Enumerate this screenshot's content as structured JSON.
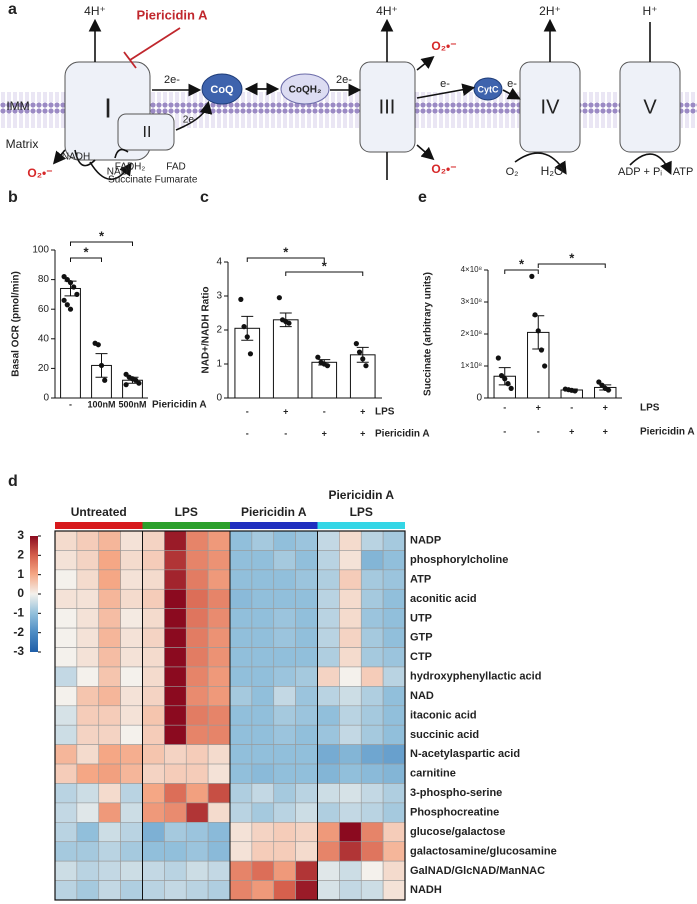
{
  "diagram": {
    "panel": "a",
    "labels": [
      "4H⁺",
      "Piericidin A",
      "IMM",
      "Matrix",
      "I",
      "2e-",
      "CoQ",
      "CoQH₂",
      "2e-",
      "II",
      "2e-",
      "NADH",
      "NAD⁺",
      "O₂•⁻",
      "FADH₂",
      "Succinate",
      "FAD",
      "Fumarate",
      "III",
      "4H⁺",
      "O₂•⁻",
      "O₂•⁻",
      "e-",
      "CytC",
      "e-",
      "IV",
      "2H⁺",
      "O₂",
      "H₂O",
      "V",
      "H⁺",
      "ADP + Pᵢ",
      "ATP"
    ]
  },
  "chart_data": [
    {
      "type": "bar",
      "panel": "b",
      "ylabel": "Basal OCR (pmol/min)",
      "values": [
        74,
        22,
        12
      ],
      "errors": [
        5,
        8,
        2
      ],
      "points": [
        [
          82,
          80,
          78,
          75,
          70,
          66,
          63,
          60
        ],
        [
          37,
          36,
          22,
          12
        ],
        [
          16,
          14,
          13,
          12,
          10,
          9
        ]
      ],
      "ylim": [
        0,
        100
      ],
      "yticks": [
        0,
        20,
        40,
        60,
        80,
        100
      ],
      "color": "#ffffff",
      "treatments": [
        {
          "name": "Piericidin A",
          "levels": [
            "-",
            "100nM",
            "500nM"
          ]
        }
      ],
      "annotations": [
        "*",
        "*"
      ]
    },
    {
      "type": "bar",
      "panel": "c",
      "ylabel": "NAD+/NADH Ratio",
      "values": [
        2.05,
        2.3,
        1.05,
        1.27
      ],
      "errors": [
        0.35,
        0.2,
        0.08,
        0.22
      ],
      "points": [
        [
          2.9,
          2.1,
          1.8,
          1.3
        ],
        [
          2.95,
          2.3,
          2.25,
          2.2
        ],
        [
          1.2,
          1.05,
          1.0,
          0.95
        ],
        [
          1.6,
          1.35,
          1.15,
          0.95
        ]
      ],
      "ylim": [
        0,
        4
      ],
      "yticks": [
        0,
        1,
        2,
        3,
        4
      ],
      "color": "#ffffff",
      "treatments": [
        {
          "name": "LPS",
          "levels": [
            "-",
            "+",
            "-",
            "+"
          ]
        },
        {
          "name": "Piericidin A",
          "levels": [
            "-",
            "-",
            "+",
            "+"
          ]
        }
      ],
      "annotations": [
        "*",
        "*"
      ]
    },
    {
      "type": "bar",
      "panel": "e",
      "ylabel": "Succinate (arbitrary units)",
      "values": [
        68000000,
        205000000,
        25000000,
        33000000
      ],
      "errors": [
        27000000,
        52000000,
        3000000,
        8000000
      ],
      "points": [
        [
          125000000,
          70000000,
          60000000,
          45000000,
          30000000
        ],
        [
          380000000,
          260000000,
          210000000,
          150000000,
          100000000
        ],
        [
          28000000,
          26000000,
          24000000,
          22000000
        ],
        [
          50000000,
          40000000,
          30000000,
          25000000
        ]
      ],
      "ylim": [
        0,
        400000000
      ],
      "yticks": [
        0,
        {
          "value": 100000000,
          "label": "1×10⁸"
        },
        {
          "value": 200000000,
          "label": "2×10⁸"
        },
        {
          "value": 300000000,
          "label": "3×10⁸"
        },
        {
          "value": 400000000,
          "label": "4×10⁸"
        }
      ],
      "color": "#ffffff",
      "treatments": [
        {
          "name": "LPS",
          "levels": [
            "-",
            "+",
            "-",
            "+"
          ]
        },
        {
          "name": "Piericidin A",
          "levels": [
            "-",
            "-",
            "+",
            "+"
          ]
        }
      ],
      "annotations": [
        "*",
        "*"
      ]
    },
    {
      "type": "heatmap",
      "panel": "d",
      "groups": [
        {
          "name": "Untreated",
          "color": "#d7191c"
        },
        {
          "name": "LPS",
          "color": "#2ca02c"
        },
        {
          "name": "Piericidin A",
          "color": "#1f2fbf"
        },
        {
          "name": "Piericidin A LPS",
          "color": "#33d6e6"
        }
      ],
      "rows": [
        "NADP",
        "phosphorylcholine",
        "ATP",
        "aconitic acid",
        "UTP",
        "GTP",
        "CTP",
        "hydroxyphenyllactic acid",
        "NAD",
        "itaconic acid",
        "succinic acid",
        "N-acetylaspartic acid",
        "carnitine",
        "3-phospho-serine",
        "Phosphocreatine",
        "glucose/galactose",
        "galactosamine/glucosamine",
        "GalNAD/GlcNAD/ManNAC",
        "NADH"
      ],
      "values": [
        [
          0.3,
          0.5,
          0.8,
          0.2,
          0.4,
          2.8,
          1.5,
          1.2,
          -1,
          -0.8,
          -1,
          -0.9,
          -0.5,
          0.3,
          -0.6,
          -0.8
        ],
        [
          0.2,
          0.4,
          1,
          0.3,
          0.5,
          2.5,
          1.5,
          1.3,
          -1,
          -1,
          -0.8,
          -1,
          -0.6,
          0.2,
          -1.2,
          -1
        ],
        [
          0,
          0.3,
          1,
          0.2,
          0.3,
          2.7,
          1.6,
          1.2,
          -1,
          -1,
          -1,
          -0.9,
          -0.7,
          0.5,
          -0.8,
          -0.9
        ],
        [
          0.2,
          0.2,
          0.8,
          0.3,
          0.5,
          3,
          1.8,
          1.5,
          -1.1,
          -1,
          -1,
          -1,
          -0.6,
          0.3,
          -0.8,
          -1
        ],
        [
          0,
          0.2,
          0.7,
          0.1,
          0.3,
          3,
          1.7,
          1.4,
          -1,
          -1,
          -0.9,
          -1,
          -0.6,
          0.3,
          -0.9,
          -1
        ],
        [
          0,
          0.2,
          0.8,
          0.2,
          0.4,
          3,
          1.6,
          1.3,
          -1,
          -1,
          -0.9,
          -1,
          -0.6,
          0.4,
          -0.8,
          -1
        ],
        [
          0,
          0.2,
          0.7,
          0.2,
          0.3,
          3,
          1.6,
          1.3,
          -1,
          -1,
          -1,
          -1,
          -0.7,
          0.3,
          -0.8,
          -0.9
        ],
        [
          -0.5,
          0,
          0.6,
          0,
          0.3,
          3,
          1.5,
          1.2,
          -1,
          -1,
          -0.9,
          -0.8,
          0.4,
          0,
          0.5,
          -0.6
        ],
        [
          0,
          0.6,
          0.8,
          0.2,
          0.4,
          3,
          1.4,
          1.2,
          -0.8,
          -1,
          -0.5,
          -0.9,
          -0.6,
          -0.4,
          -0.7,
          -1
        ],
        [
          -0.3,
          0.5,
          0.5,
          0.2,
          0.6,
          3,
          1.6,
          1.5,
          -1,
          -1,
          -0.8,
          -0.9,
          -1,
          -0.6,
          -0.8,
          -1
        ],
        [
          -0.4,
          0.4,
          0.4,
          0,
          0.5,
          3.2,
          1.5,
          1.5,
          -1,
          -1,
          -0.9,
          -1,
          -0.9,
          -0.5,
          -0.8,
          -1
        ],
        [
          0.8,
          0.3,
          1,
          0.9,
          0.6,
          0.4,
          0.5,
          0.3,
          -1,
          -1,
          -1,
          -1,
          -1.4,
          -1.2,
          -1.5,
          -1.6
        ],
        [
          0.5,
          1,
          1.1,
          0.8,
          0.4,
          0.5,
          0.5,
          0.2,
          -1,
          -1.1,
          -1,
          -1,
          -1.2,
          -1,
          -1.1,
          -1.2
        ],
        [
          -0.6,
          -0.4,
          0.3,
          -0.6,
          1,
          1.8,
          1.1,
          2.2,
          -0.7,
          -0.5,
          -0.8,
          -0.6,
          -0.4,
          -0.3,
          -0.5,
          -0.7
        ],
        [
          -0.5,
          -0.2,
          1.2,
          -0.4,
          1.2,
          1.4,
          2.5,
          0.3,
          -0.6,
          -0.8,
          -0.6,
          -0.4,
          -0.7,
          -0.5,
          -0.6,
          -0.8
        ],
        [
          -0.6,
          -1,
          -0.4,
          -0.6,
          -1.3,
          -0.8,
          -0.9,
          -1.1,
          0.2,
          0.4,
          0.5,
          0.4,
          1.2,
          3,
          1.5,
          0.5
        ],
        [
          -0.8,
          -0.8,
          -0.6,
          -0.8,
          -1,
          -1,
          -0.9,
          -1.1,
          0.2,
          0.5,
          0.5,
          0.3,
          1.5,
          2.5,
          1.7,
          0.8
        ],
        [
          -0.4,
          -0.6,
          -0.5,
          -0.4,
          -0.5,
          -0.6,
          -0.4,
          -0.5,
          1.5,
          1.8,
          1.2,
          2.5,
          -0.2,
          -0.4,
          0,
          0.3
        ],
        [
          -0.6,
          -0.8,
          -0.5,
          -0.7,
          -0.6,
          -0.5,
          -0.6,
          -0.7,
          1.5,
          1.2,
          2,
          2.8,
          -0.3,
          -0.5,
          -0.4,
          0.2
        ]
      ],
      "clim": [
        -3,
        3
      ],
      "colorbar_ticks": [
        3,
        2,
        1,
        0,
        -1,
        -2,
        -3
      ]
    }
  ]
}
